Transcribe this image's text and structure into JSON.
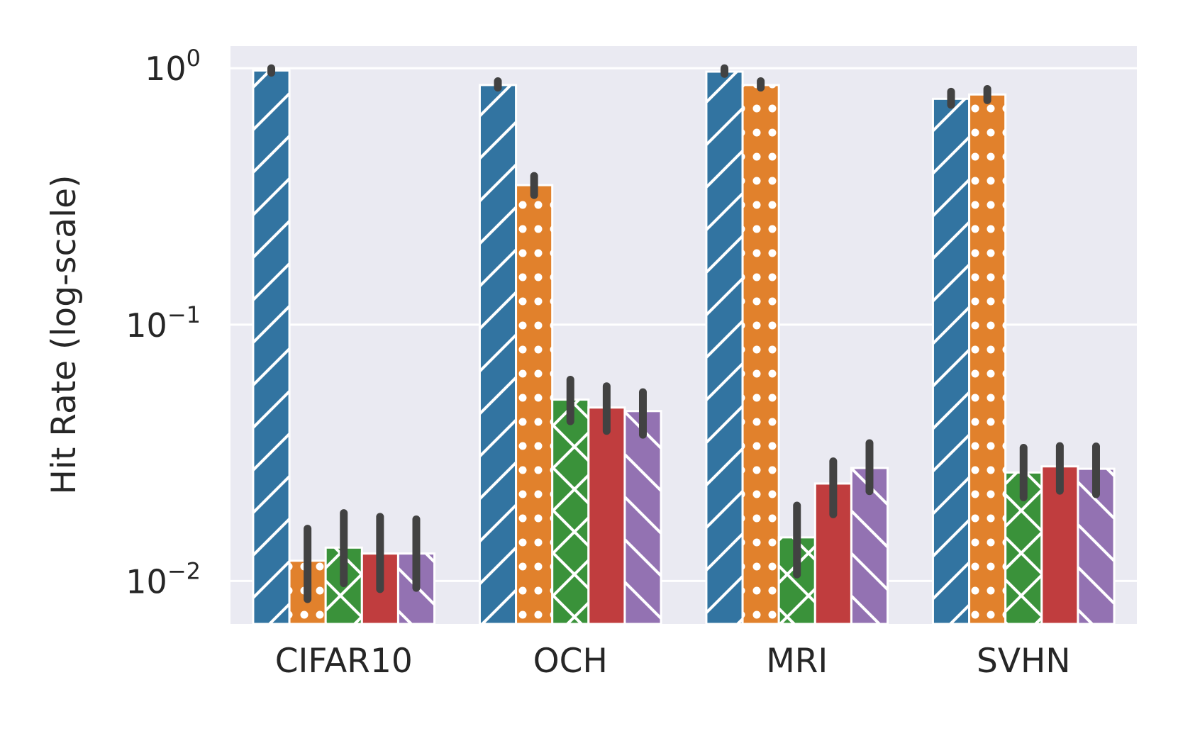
{
  "chart_data": {
    "type": "bar",
    "ylabel": "Hit Rate (log-scale)",
    "yscale": "log",
    "ylim": [
      0.0068,
      1.22
    ],
    "grid": true,
    "yticks": [
      {
        "value": 1,
        "base": "10",
        "exp": "0"
      },
      {
        "value": 0.1,
        "base": "10",
        "exp": "−1"
      },
      {
        "value": 0.01,
        "base": "10",
        "exp": "−2"
      }
    ],
    "categories": [
      "CIFAR10",
      "OCH",
      "MRI",
      "SVHN"
    ],
    "series": [
      {
        "color": "#3274a1",
        "hatch": "diag-right",
        "values": [
          0.98,
          0.86,
          0.97,
          0.76
        ],
        "err_low": [
          0.96,
          0.84,
          0.95,
          0.72
        ],
        "err_high": [
          1.0,
          0.89,
          1.0,
          0.81
        ]
      },
      {
        "color": "#e1812c",
        "hatch": "dots",
        "values": [
          0.012,
          0.35,
          0.86,
          0.79
        ],
        "err_low": [
          0.0085,
          0.32,
          0.84,
          0.75
        ],
        "err_high": [
          0.016,
          0.38,
          0.89,
          0.83
        ]
      },
      {
        "color": "#3a923a",
        "hatch": "cross",
        "values": [
          0.0135,
          0.051,
          0.0148,
          0.0265
        ],
        "err_low": [
          0.0098,
          0.042,
          0.0106,
          0.0212
        ],
        "err_high": [
          0.0184,
          0.061,
          0.0197,
          0.0331
        ]
      },
      {
        "color": "#c03d3e",
        "hatch": "none",
        "values": [
          0.0128,
          0.0475,
          0.024,
          0.028
        ],
        "err_low": [
          0.0093,
          0.0385,
          0.0182,
          0.0225
        ],
        "err_high": [
          0.0178,
          0.0575,
          0.0293,
          0.0336
        ]
      },
      {
        "color": "#9372b2",
        "hatch": "diag-left",
        "values": [
          0.0128,
          0.046,
          0.0276,
          0.0274
        ],
        "err_low": [
          0.0094,
          0.0372,
          0.0224,
          0.0218
        ],
        "err_high": [
          0.0174,
          0.0545,
          0.0345,
          0.0335
        ]
      }
    ]
  }
}
